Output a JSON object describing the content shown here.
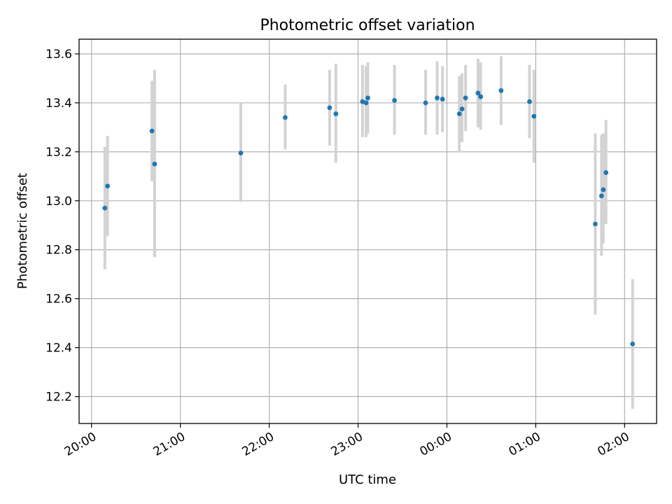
{
  "chart_data": {
    "type": "scatter",
    "title": "Photometric offset variation",
    "xlabel": "UTC time",
    "ylabel": "Photometric offset",
    "x_unit": "hours since 20:00 UTC",
    "xlim": [
      -0.14,
      6.36
    ],
    "ylim": [
      12.09,
      13.66
    ],
    "grid": true,
    "colors": {
      "marker": "#1f77b4",
      "errorbar": "#d3d3d3"
    },
    "x_ticks": [
      {
        "value": 0,
        "label": "20:00"
      },
      {
        "value": 1,
        "label": "21:00"
      },
      {
        "value": 2,
        "label": "22:00"
      },
      {
        "value": 3,
        "label": "23:00"
      },
      {
        "value": 4,
        "label": "00:00"
      },
      {
        "value": 5,
        "label": "01:00"
      },
      {
        "value": 6,
        "label": "02:00"
      }
    ],
    "y_ticks": [
      {
        "value": 12.2,
        "label": "12.2"
      },
      {
        "value": 12.4,
        "label": "12.4"
      },
      {
        "value": 12.6,
        "label": "12.6"
      },
      {
        "value": 12.8,
        "label": "12.8"
      },
      {
        "value": 13.0,
        "label": "13.0"
      },
      {
        "value": 13.2,
        "label": "13.2"
      },
      {
        "value": 13.4,
        "label": "13.4"
      },
      {
        "value": 13.6,
        "label": "13.6"
      }
    ],
    "points": [
      {
        "x": 0.15,
        "y": 12.97,
        "lo": 12.72,
        "hi": 13.22
      },
      {
        "x": 0.18,
        "y": 13.06,
        "lo": 12.855,
        "hi": 13.265
      },
      {
        "x": 0.68,
        "y": 13.285,
        "lo": 13.08,
        "hi": 13.49
      },
      {
        "x": 0.71,
        "y": 13.15,
        "lo": 12.77,
        "hi": 13.535
      },
      {
        "x": 1.68,
        "y": 13.195,
        "lo": 12.995,
        "hi": 13.4
      },
      {
        "x": 2.18,
        "y": 13.34,
        "lo": 13.21,
        "hi": 13.475
      },
      {
        "x": 2.68,
        "y": 13.38,
        "lo": 13.225,
        "hi": 13.535
      },
      {
        "x": 2.75,
        "y": 13.355,
        "lo": 13.155,
        "hi": 13.56
      },
      {
        "x": 3.05,
        "y": 13.405,
        "lo": 13.26,
        "hi": 13.555
      },
      {
        "x": 3.09,
        "y": 13.4,
        "lo": 13.26,
        "hi": 13.55
      },
      {
        "x": 3.11,
        "y": 13.42,
        "lo": 13.275,
        "hi": 13.565
      },
      {
        "x": 3.41,
        "y": 13.41,
        "lo": 13.27,
        "hi": 13.555
      },
      {
        "x": 3.76,
        "y": 13.4,
        "lo": 13.27,
        "hi": 13.535
      },
      {
        "x": 3.89,
        "y": 13.42,
        "lo": 13.27,
        "hi": 13.57
      },
      {
        "x": 3.95,
        "y": 13.415,
        "lo": 13.28,
        "hi": 13.55
      },
      {
        "x": 4.14,
        "y": 13.355,
        "lo": 13.2,
        "hi": 13.51
      },
      {
        "x": 4.17,
        "y": 13.375,
        "lo": 13.24,
        "hi": 13.52
      },
      {
        "x": 4.21,
        "y": 13.42,
        "lo": 13.285,
        "hi": 13.555
      },
      {
        "x": 4.35,
        "y": 13.44,
        "lo": 13.3,
        "hi": 13.58
      },
      {
        "x": 4.38,
        "y": 13.425,
        "lo": 13.29,
        "hi": 13.565
      },
      {
        "x": 4.61,
        "y": 13.45,
        "lo": 13.31,
        "hi": 13.59
      },
      {
        "x": 4.93,
        "y": 13.405,
        "lo": 13.255,
        "hi": 13.555
      },
      {
        "x": 4.98,
        "y": 13.345,
        "lo": 13.155,
        "hi": 13.535
      },
      {
        "x": 5.67,
        "y": 12.905,
        "lo": 12.535,
        "hi": 13.275
      },
      {
        "x": 5.74,
        "y": 13.02,
        "lo": 12.775,
        "hi": 13.27
      },
      {
        "x": 5.76,
        "y": 13.045,
        "lo": 12.825,
        "hi": 13.275
      },
      {
        "x": 5.79,
        "y": 13.115,
        "lo": 12.905,
        "hi": 13.33
      },
      {
        "x": 6.09,
        "y": 12.415,
        "lo": 12.15,
        "hi": 12.68
      }
    ]
  }
}
